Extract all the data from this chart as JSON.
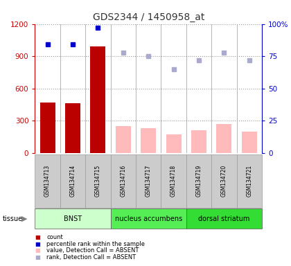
{
  "title": "GDS2344 / 1450958_at",
  "samples": [
    "GSM134713",
    "GSM134714",
    "GSM134715",
    "GSM134716",
    "GSM134717",
    "GSM134718",
    "GSM134719",
    "GSM134720",
    "GSM134721"
  ],
  "bar_values": [
    470,
    460,
    990,
    250,
    230,
    170,
    210,
    270,
    200
  ],
  "bar_colors": [
    "#bb0000",
    "#bb0000",
    "#bb0000",
    "#ffbbbb",
    "#ffbbbb",
    "#ffbbbb",
    "#ffbbbb",
    "#ffbbbb",
    "#ffbbbb"
  ],
  "rank_values": [
    84,
    84,
    97,
    null,
    null,
    null,
    null,
    null,
    null
  ],
  "rank_color_present": "#0000cc",
  "absent_rank_values": [
    null,
    null,
    null,
    78,
    75,
    65,
    72,
    78,
    72
  ],
  "absent_rank_color": "#aaaacc",
  "ylim": [
    0,
    1200
  ],
  "yticks_left": [
    0,
    300,
    600,
    900,
    1200
  ],
  "yticks_right": [
    0,
    25,
    50,
    75,
    100
  ],
  "right_ylim": [
    0,
    100
  ],
  "tissue_groups": [
    {
      "label": "BNST",
      "start": 0,
      "end": 3,
      "color": "#ccffcc"
    },
    {
      "label": "nucleus accumbens",
      "start": 3,
      "end": 6,
      "color": "#55ee55"
    },
    {
      "label": "dorsal striatum",
      "start": 6,
      "end": 9,
      "color": "#33dd33"
    }
  ],
  "legend_items": [
    {
      "label": "count",
      "color": "#bb0000"
    },
    {
      "label": "percentile rank within the sample",
      "color": "#0000cc"
    },
    {
      "label": "value, Detection Call = ABSENT",
      "color": "#ffbbbb"
    },
    {
      "label": "rank, Detection Call = ABSENT",
      "color": "#aaaacc"
    }
  ],
  "title_color": "#333333",
  "left_axis_color": "#cc0000",
  "right_axis_color": "#0000cc",
  "bar_width": 0.6,
  "grid_color": "#999999",
  "tissue_label": "tissue",
  "bg_color": "#ffffff",
  "sample_box_color": "#cccccc",
  "sample_box_edge": "#999999"
}
